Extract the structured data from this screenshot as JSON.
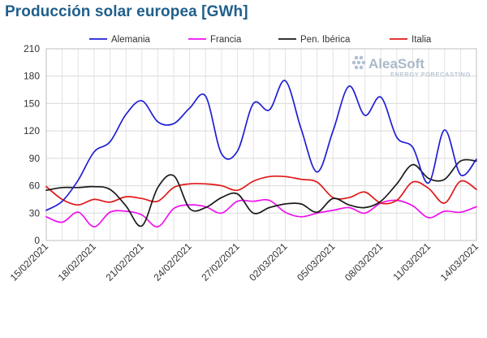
{
  "chart_data": {
    "type": "line",
    "title": "Producción solar europea [GWh]",
    "xlabel": "",
    "ylabel": "",
    "ylim": [
      0,
      210
    ],
    "yticks": [
      0,
      30,
      60,
      90,
      120,
      150,
      180,
      210
    ],
    "x": [
      "15/02/2021",
      "16/02/2021",
      "17/02/2021",
      "18/02/2021",
      "19/02/2021",
      "20/02/2021",
      "21/02/2021",
      "22/02/2021",
      "23/02/2021",
      "24/02/2021",
      "25/02/2021",
      "26/02/2021",
      "27/02/2021",
      "28/02/2021",
      "01/03/2021",
      "02/03/2021",
      "03/03/2021",
      "04/03/2021",
      "05/03/2021",
      "06/03/2021",
      "07/03/2021",
      "08/03/2021",
      "09/03/2021",
      "10/03/2021",
      "11/03/2021",
      "12/03/2021",
      "13/03/2021",
      "14/03/2021"
    ],
    "xtick_labels": [
      "15/02/2021",
      "18/02/2021",
      "21/02/2021",
      "24/02/2021",
      "27/02/2021",
      "02/03/2021",
      "05/03/2021",
      "08/03/2021",
      "11/03/2021",
      "14/03/2021"
    ],
    "grid": true,
    "legend_position": "top",
    "series": [
      {
        "name": "Alemania",
        "color": "#1f1fd6",
        "values": [
          33,
          43,
          66,
          97,
          108,
          138,
          153,
          130,
          128,
          145,
          158,
          95,
          98,
          150,
          143,
          175,
          122,
          75,
          120,
          169,
          137,
          157,
          113,
          102,
          63,
          121,
          72,
          89
        ]
      },
      {
        "name": "Francia",
        "color": "#ee11ee",
        "values": [
          26,
          20,
          31,
          15,
          31,
          32,
          28,
          15,
          35,
          39,
          37,
          30,
          43,
          43,
          44,
          31,
          26,
          30,
          33,
          36,
          30,
          41,
          44,
          38,
          25,
          32,
          31,
          37
        ]
      },
      {
        "name": "Pen. Ibérica",
        "color": "#1a1a1a",
        "values": [
          55,
          58,
          58,
          59,
          56,
          38,
          16,
          58,
          71,
          35,
          36,
          47,
          51,
          30,
          36,
          40,
          40,
          31,
          46,
          39,
          36,
          43,
          62,
          83,
          68,
          67,
          87,
          87
        ]
      },
      {
        "name": "Italia",
        "color": "#e01818",
        "values": [
          59,
          45,
          39,
          45,
          42,
          48,
          46,
          43,
          58,
          62,
          62,
          60,
          55,
          65,
          70,
          70,
          67,
          64,
          47,
          47,
          53,
          41,
          44,
          64,
          57,
          41,
          65,
          56
        ]
      }
    ]
  },
  "watermark": {
    "brand": "AleaSoft",
    "tagline": "ENERGY FORECASTING"
  }
}
